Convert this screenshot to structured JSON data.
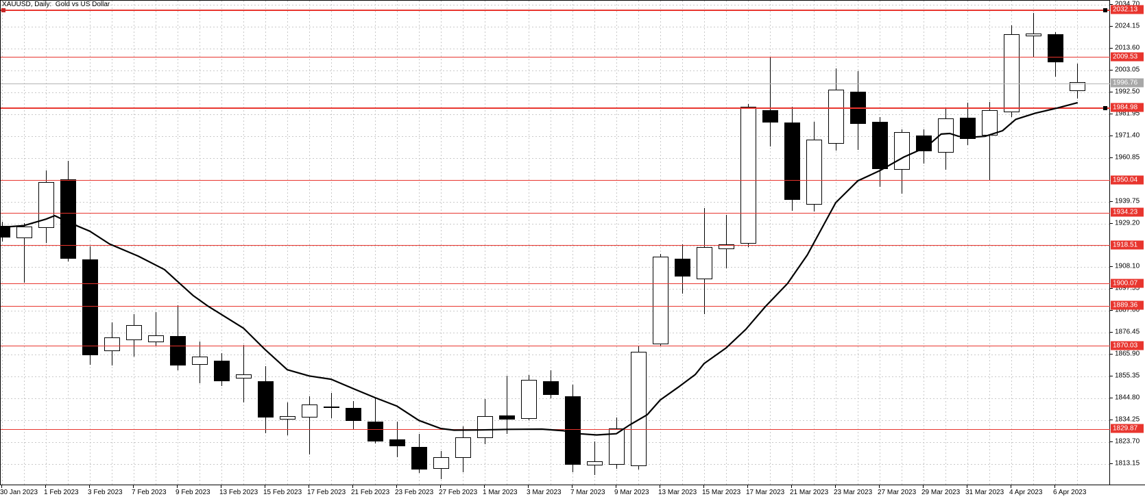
{
  "title": "XAUUSD, Daily:  Gold vs US Dollar",
  "symbol": "XAUUSD",
  "timeframe": "Daily",
  "description": "Gold vs US Dollar",
  "current_price": {
    "label": "1996.76",
    "price": 1996.76
  },
  "levels": [
    {
      "label": "2032.13",
      "price": 2032.13,
      "marker": true,
      "weight": 2
    },
    {
      "label": "2009.53",
      "price": 2009.53,
      "marker": false,
      "weight": 1
    },
    {
      "label": "1984.98",
      "price": 1984.98,
      "marker": true,
      "weight": 2
    },
    {
      "label": "1950.04",
      "price": 1950.04,
      "marker": false,
      "weight": 1
    },
    {
      "label": "1934.23",
      "price": 1934.23,
      "marker": false,
      "weight": 1
    },
    {
      "label": "1918.51",
      "price": 1918.51,
      "marker": false,
      "weight": 1
    },
    {
      "label": "1900.07",
      "price": 1900.07,
      "marker": false,
      "weight": 1
    },
    {
      "label": "1889.36",
      "price": 1889.36,
      "marker": false,
      "weight": 1
    },
    {
      "label": "1870.03",
      "price": 1870.03,
      "marker": false,
      "weight": 1
    },
    {
      "label": "1829.87",
      "price": 1829.87,
      "marker": false,
      "weight": 1
    }
  ],
  "price_axis": {
    "tick_labels": [
      "2034.70",
      "2024.15",
      "2013.60",
      "2003.05",
      "1992.50",
      "1981.95",
      "1971.40",
      "1960.85",
      "1939.75",
      "1929.20",
      "1908.10",
      "1897.55",
      "1887.00",
      "1876.45",
      "1865.90",
      "1855.35",
      "1844.80",
      "1834.25",
      "1823.70",
      "1813.15"
    ],
    "grid_prices": [
      2034.7,
      2024.15,
      2013.6,
      2003.05,
      1992.5,
      1981.95,
      1971.4,
      1960.85,
      1950.3,
      1939.75,
      1929.2,
      1918.65,
      1908.1,
      1897.55,
      1887.0,
      1876.45,
      1865.9,
      1855.35,
      1844.8,
      1834.25,
      1823.7,
      1813.15
    ]
  },
  "date_axis": {
    "labels": [
      {
        "i": 0,
        "label": "30 Jan 2023"
      },
      {
        "i": 2,
        "label": "1 Feb 2023"
      },
      {
        "i": 4,
        "label": "3 Feb 2023"
      },
      {
        "i": 6,
        "label": "7 Feb 2023"
      },
      {
        "i": 8,
        "label": "9 Feb 2023"
      },
      {
        "i": 10,
        "label": "13 Feb 2023"
      },
      {
        "i": 12,
        "label": "15 Feb 2023"
      },
      {
        "i": 14,
        "label": "17 Feb 2023"
      },
      {
        "i": 16,
        "label": "21 Feb 2023"
      },
      {
        "i": 18,
        "label": "23 Feb 2023"
      },
      {
        "i": 20,
        "label": "27 Feb 2023"
      },
      {
        "i": 22,
        "label": "1 Mar 2023"
      },
      {
        "i": 24,
        "label": "3 Mar 2023"
      },
      {
        "i": 26,
        "label": "7 Mar 2023"
      },
      {
        "i": 28,
        "label": "9 Mar 2023"
      },
      {
        "i": 30,
        "label": "13 Mar 2023"
      },
      {
        "i": 32,
        "label": "15 Mar 2023"
      },
      {
        "i": 34,
        "label": "17 Mar 2023"
      },
      {
        "i": 36,
        "label": "21 Mar 2023"
      },
      {
        "i": 38,
        "label": "23 Mar 2023"
      },
      {
        "i": 40,
        "label": "27 Mar 2023"
      },
      {
        "i": 42,
        "label": "29 Mar 2023"
      },
      {
        "i": 44,
        "label": "31 Mar 2023"
      },
      {
        "i": 46,
        "label": "4 Apr 2023"
      },
      {
        "i": 48,
        "label": "6 Apr 2023"
      }
    ]
  },
  "colors": {
    "bull": "#ffffff",
    "bear": "#000000",
    "wick": "#000000",
    "ma": "#000000",
    "level_line": "#e8352e",
    "current_line": "#b4b4b4",
    "grid": "#c9c9c9"
  },
  "chart_data": {
    "type": "candlestick",
    "title": "XAUUSD Daily — Gold vs US Dollar",
    "ylim": [
      1805,
      2036
    ],
    "grid": true,
    "series": [
      {
        "name": "XAUUSD OHLC",
        "type": "candlestick",
        "candles": [
          {
            "date": "30 Jan 2023",
            "o": 1928.0,
            "h": 1930.0,
            "l": 1920.5,
            "c": 1922.4
          },
          {
            "date": "31 Jan 2023",
            "o": 1922.0,
            "h": 1929.3,
            "l": 1900.7,
            "c": 1927.7
          },
          {
            "date": "1 Feb 2023",
            "o": 1927.2,
            "h": 1954.8,
            "l": 1919.8,
            "c": 1949.3
          },
          {
            "date": "2 Feb 2023",
            "o": 1950.5,
            "h": 1959.5,
            "l": 1911.0,
            "c": 1912.3
          },
          {
            "date": "3 Feb 2023",
            "o": 1911.8,
            "h": 1918.3,
            "l": 1861.0,
            "c": 1865.5
          },
          {
            "date": "6 Feb 2023",
            "o": 1867.7,
            "h": 1881.4,
            "l": 1860.5,
            "c": 1874.1
          },
          {
            "date": "7 Feb 2023",
            "o": 1872.9,
            "h": 1885.5,
            "l": 1864.9,
            "c": 1880.0
          },
          {
            "date": "8 Feb 2023",
            "o": 1871.8,
            "h": 1886.4,
            "l": 1870.0,
            "c": 1875.1
          },
          {
            "date": "9 Feb 2023",
            "o": 1874.9,
            "h": 1889.7,
            "l": 1858.3,
            "c": 1860.5
          },
          {
            "date": "10 Feb 2023",
            "o": 1861.1,
            "h": 1872.1,
            "l": 1852.0,
            "c": 1865.0
          },
          {
            "date": "13 Feb 2023",
            "o": 1863.1,
            "h": 1866.6,
            "l": 1850.6,
            "c": 1853.2
          },
          {
            "date": "14 Feb 2023",
            "o": 1854.2,
            "h": 1870.6,
            "l": 1842.9,
            "c": 1856.4
          },
          {
            "date": "15 Feb 2023",
            "o": 1852.9,
            "h": 1860.3,
            "l": 1828.0,
            "c": 1835.4
          },
          {
            "date": "16 Feb 2023",
            "o": 1834.6,
            "h": 1842.9,
            "l": 1826.9,
            "c": 1836.3
          },
          {
            "date": "17 Feb 2023",
            "o": 1835.4,
            "h": 1845.7,
            "l": 1817.6,
            "c": 1841.8
          },
          {
            "date": "20 Feb 2023",
            "o": 1840.3,
            "h": 1847.3,
            "l": 1835.1,
            "c": 1840.9
          },
          {
            "date": "21 Feb 2023",
            "o": 1840.1,
            "h": 1843.4,
            "l": 1829.6,
            "c": 1834.0
          },
          {
            "date": "22 Feb 2023",
            "o": 1833.5,
            "h": 1845.1,
            "l": 1823.0,
            "c": 1824.1
          },
          {
            "date": "23 Feb 2023",
            "o": 1825.0,
            "h": 1833.5,
            "l": 1816.4,
            "c": 1821.6
          },
          {
            "date": "24 Feb 2023",
            "o": 1821.4,
            "h": 1827.5,
            "l": 1808.8,
            "c": 1810.4
          },
          {
            "date": "27 Feb 2023",
            "o": 1810.7,
            "h": 1819.4,
            "l": 1805.7,
            "c": 1816.3
          },
          {
            "date": "28 Feb 2023",
            "o": 1816.1,
            "h": 1831.3,
            "l": 1809.0,
            "c": 1826.0
          },
          {
            "date": "1 Mar 2023",
            "o": 1825.5,
            "h": 1844.3,
            "l": 1822.5,
            "c": 1836.3
          },
          {
            "date": "2 Mar 2023",
            "o": 1836.6,
            "h": 1855.6,
            "l": 1827.5,
            "c": 1834.6
          },
          {
            "date": "3 Mar 2023",
            "o": 1834.9,
            "h": 1855.9,
            "l": 1834.3,
            "c": 1853.8
          },
          {
            "date": "6 Mar 2023",
            "o": 1853.2,
            "h": 1858.4,
            "l": 1844.9,
            "c": 1846.3
          },
          {
            "date": "7 Mar 2023",
            "o": 1845.9,
            "h": 1851.5,
            "l": 1809.0,
            "c": 1812.6
          },
          {
            "date": "8 Mar 2023",
            "o": 1812.3,
            "h": 1823.9,
            "l": 1807.7,
            "c": 1814.3
          },
          {
            "date": "9 Mar 2023",
            "o": 1812.6,
            "h": 1835.4,
            "l": 1810.7,
            "c": 1830.2
          },
          {
            "date": "10 Mar 2023",
            "o": 1812.0,
            "h": 1869.8,
            "l": 1810.5,
            "c": 1867.1
          },
          {
            "date": "13 Mar 2023",
            "o": 1871.0,
            "h": 1914.5,
            "l": 1869.8,
            "c": 1913.2
          },
          {
            "date": "14 Mar 2023",
            "o": 1912.3,
            "h": 1919.1,
            "l": 1895.3,
            "c": 1903.5
          },
          {
            "date": "15 Mar 2023",
            "o": 1902.4,
            "h": 1936.8,
            "l": 1885.3,
            "c": 1917.8
          },
          {
            "date": "16 Mar 2023",
            "o": 1916.7,
            "h": 1933.4,
            "l": 1907.7,
            "c": 1919.1
          },
          {
            "date": "17 Mar 2023",
            "o": 1919.4,
            "h": 1987.0,
            "l": 1917.7,
            "c": 1985.7
          },
          {
            "date": "20 Mar 2023",
            "o": 1983.9,
            "h": 2009.5,
            "l": 1966.3,
            "c": 1977.9
          },
          {
            "date": "21 Mar 2023",
            "o": 1978.1,
            "h": 1985.6,
            "l": 1935.4,
            "c": 1940.6
          },
          {
            "date": "22 Mar 2023",
            "o": 1938.2,
            "h": 1978.4,
            "l": 1935.0,
            "c": 1969.6
          },
          {
            "date": "23 Mar 2023",
            "o": 1967.9,
            "h": 2004.0,
            "l": 1964.3,
            "c": 1993.8
          },
          {
            "date": "24 Mar 2023",
            "o": 1992.7,
            "h": 2002.9,
            "l": 1964.7,
            "c": 1977.3
          },
          {
            "date": "27 Mar 2023",
            "o": 1978.2,
            "h": 1980.5,
            "l": 1946.9,
            "c": 1955.6
          },
          {
            "date": "28 Mar 2023",
            "o": 1955.3,
            "h": 1974.6,
            "l": 1943.7,
            "c": 1973.2
          },
          {
            "date": "29 Mar 2023",
            "o": 1971.8,
            "h": 1974.6,
            "l": 1958.2,
            "c": 1964.1
          },
          {
            "date": "30 Mar 2023",
            "o": 1963.5,
            "h": 1984.5,
            "l": 1955.1,
            "c": 1979.8
          },
          {
            "date": "31 Mar 2023",
            "o": 1980.4,
            "h": 1987.6,
            "l": 1967.0,
            "c": 1970.1
          },
          {
            "date": "3 Apr 2023",
            "o": 1971.6,
            "h": 1988.0,
            "l": 1949.8,
            "c": 1984.0
          },
          {
            "date": "4 Apr 2023",
            "o": 1983.0,
            "h": 2024.9,
            "l": 1980.5,
            "c": 2020.5
          },
          {
            "date": "5 Apr 2023",
            "o": 2019.7,
            "h": 2030.8,
            "l": 2009.8,
            "c": 2020.8
          },
          {
            "date": "6 Apr 2023",
            "o": 2020.5,
            "h": 2021.5,
            "l": 2000.1,
            "c": 2007.0
          },
          {
            "date": "7 Apr 2023",
            "o": 1993.3,
            "h": 2006.5,
            "l": 1989.4,
            "c": 1997.4
          }
        ]
      },
      {
        "name": "Moving Average",
        "type": "line",
        "points": [
          [
            0,
            1927.4
          ],
          [
            1,
            1928.2
          ],
          [
            2,
            1931.3
          ],
          [
            2.4,
            1933.0
          ],
          [
            3.1,
            1929.5
          ],
          [
            4,
            1925.5
          ],
          [
            4.9,
            1919.3
          ],
          [
            6.2,
            1913.5
          ],
          [
            7.4,
            1907.0
          ],
          [
            8.7,
            1894.5
          ],
          [
            9.4,
            1889.2
          ],
          [
            11,
            1878.7
          ],
          [
            12,
            1868.2
          ],
          [
            13,
            1858.6
          ],
          [
            14,
            1855.6
          ],
          [
            15,
            1854.0
          ],
          [
            16,
            1849.5
          ],
          [
            17,
            1845.1
          ],
          [
            18,
            1841.0
          ],
          [
            19,
            1834.1
          ],
          [
            20,
            1830.2
          ],
          [
            20.6,
            1829.4
          ],
          [
            21.8,
            1829.5
          ],
          [
            23.1,
            1829.8
          ],
          [
            24.6,
            1829.9
          ],
          [
            25.6,
            1829.1
          ],
          [
            26.3,
            1827.7
          ],
          [
            27.1,
            1827.1
          ],
          [
            28,
            1827.7
          ],
          [
            28.6,
            1831.9
          ],
          [
            29.4,
            1836.8
          ],
          [
            30,
            1844.0
          ],
          [
            30.8,
            1850.0
          ],
          [
            31.6,
            1856.3
          ],
          [
            32,
            1861.6
          ],
          [
            33,
            1869.1
          ],
          [
            33.9,
            1878.1
          ],
          [
            34.8,
            1889.2
          ],
          [
            35.8,
            1900.2
          ],
          [
            36.7,
            1914.0
          ],
          [
            38,
            1939.3
          ],
          [
            39,
            1949.8
          ],
          [
            40,
            1954.7
          ],
          [
            41.1,
            1961.3
          ],
          [
            42.1,
            1966.0
          ],
          [
            42.8,
            1972.4
          ],
          [
            43.2,
            1972.7
          ],
          [
            43.6,
            1971.3
          ],
          [
            44.2,
            1970.9
          ],
          [
            44.8,
            1971.3
          ],
          [
            45.6,
            1974.0
          ],
          [
            46.2,
            1979.5
          ],
          [
            47.1,
            1982.5
          ],
          [
            48.1,
            1985.0
          ],
          [
            49,
            1987.5
          ]
        ]
      }
    ],
    "horizontal_levels": [
      2032.13,
      2009.53,
      1984.98,
      1950.04,
      1934.23,
      1918.51,
      1900.07,
      1889.36,
      1870.03,
      1829.87
    ],
    "last_price": 1996.76
  }
}
